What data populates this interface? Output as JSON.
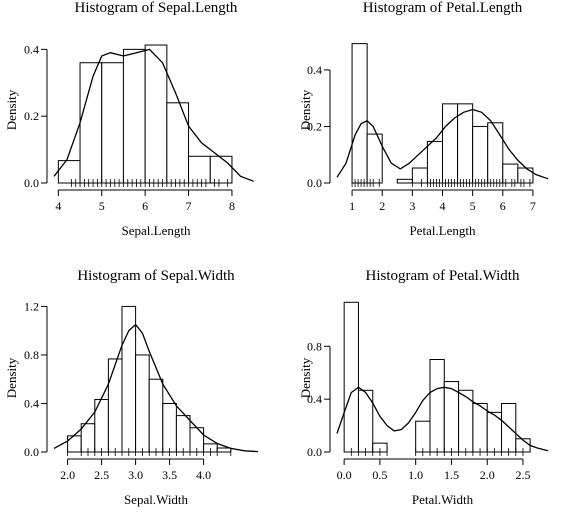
{
  "chart_data": [
    {
      "type": "bar",
      "title": "Histogram of  Sepal.Length",
      "xlabel": "Sepal.Length",
      "ylabel": "Density",
      "xlim": [
        3.9,
        8.6
      ],
      "ylim": [
        0,
        0.44
      ],
      "xticks": [
        "4",
        "5",
        "6",
        "7",
        "8"
      ],
      "xtick_values": [
        4,
        5,
        6,
        7,
        8
      ],
      "yticks": [
        "0.0",
        "0.2",
        "0.4"
      ],
      "ytick_values": [
        0,
        0.2,
        0.4
      ],
      "bins": [
        {
          "start": 4.0,
          "end": 4.5,
          "density": 0.067
        },
        {
          "start": 4.5,
          "end": 5.0,
          "density": 0.36
        },
        {
          "start": 5.0,
          "end": 5.5,
          "density": 0.36
        },
        {
          "start": 5.5,
          "end": 6.0,
          "density": 0.4
        },
        {
          "start": 6.0,
          "end": 6.5,
          "density": 0.413
        },
        {
          "start": 6.5,
          "end": 7.0,
          "density": 0.24
        },
        {
          "start": 7.0,
          "end": 7.5,
          "density": 0.08
        },
        {
          "start": 7.5,
          "end": 8.0,
          "density": 0.08
        }
      ],
      "density_curve": {
        "x": [
          3.9,
          4.2,
          4.5,
          4.8,
          5.0,
          5.2,
          5.5,
          5.8,
          6.1,
          6.4,
          6.7,
          7.0,
          7.3,
          7.6,
          7.9,
          8.2,
          8.5
        ],
        "y": [
          0.02,
          0.07,
          0.18,
          0.32,
          0.38,
          0.39,
          0.38,
          0.39,
          0.4,
          0.36,
          0.27,
          0.17,
          0.12,
          0.09,
          0.06,
          0.02,
          0.005
        ]
      },
      "rug": [
        4.3,
        4.4,
        4.5,
        4.6,
        4.7,
        4.8,
        4.9,
        5.0,
        5.1,
        5.2,
        5.3,
        5.4,
        5.5,
        5.6,
        5.7,
        5.8,
        5.9,
        6.0,
        6.1,
        6.2,
        6.3,
        6.4,
        6.5,
        6.6,
        6.7,
        6.8,
        6.9,
        7.0,
        7.1,
        7.2,
        7.3,
        7.4,
        7.6,
        7.7,
        7.9
      ],
      "grid": false,
      "legend": "none"
    },
    {
      "type": "bar",
      "title": "Histogram of  Petal.Length",
      "xlabel": "Petal.Length",
      "ylabel": "Density",
      "xlim": [
        0.5,
        7.5
      ],
      "ylim": [
        0,
        0.52
      ],
      "xticks": [
        "1",
        "2",
        "3",
        "4",
        "5",
        "6",
        "7"
      ],
      "xtick_values": [
        1,
        2,
        3,
        4,
        5,
        6,
        7
      ],
      "yticks": [
        "0.0",
        "0.2",
        "0.4"
      ],
      "ytick_values": [
        0,
        0.2,
        0.4
      ],
      "bins": [
        {
          "start": 1.0,
          "end": 1.5,
          "density": 0.493
        },
        {
          "start": 1.5,
          "end": 2.0,
          "density": 0.173
        },
        {
          "start": 2.0,
          "end": 2.5,
          "density": 0.0
        },
        {
          "start": 2.5,
          "end": 3.0,
          "density": 0.013
        },
        {
          "start": 3.0,
          "end": 3.5,
          "density": 0.053
        },
        {
          "start": 3.5,
          "end": 4.0,
          "density": 0.147
        },
        {
          "start": 4.0,
          "end": 4.5,
          "density": 0.28
        },
        {
          "start": 4.5,
          "end": 5.0,
          "density": 0.28
        },
        {
          "start": 5.0,
          "end": 5.5,
          "density": 0.2
        },
        {
          "start": 5.5,
          "end": 6.0,
          "density": 0.213
        },
        {
          "start": 6.0,
          "end": 6.5,
          "density": 0.067
        },
        {
          "start": 6.5,
          "end": 7.0,
          "density": 0.053
        }
      ],
      "density_curve": {
        "x": [
          0.5,
          0.8,
          1.1,
          1.3,
          1.5,
          1.7,
          2.0,
          2.3,
          2.6,
          2.9,
          3.2,
          3.5,
          3.8,
          4.1,
          4.4,
          4.7,
          5.0,
          5.3,
          5.6,
          5.9,
          6.2,
          6.5,
          6.8,
          7.1,
          7.5
        ],
        "y": [
          0.02,
          0.07,
          0.17,
          0.21,
          0.22,
          0.2,
          0.13,
          0.07,
          0.05,
          0.07,
          0.1,
          0.13,
          0.16,
          0.2,
          0.23,
          0.25,
          0.26,
          0.25,
          0.22,
          0.17,
          0.12,
          0.08,
          0.05,
          0.03,
          0.015
        ]
      },
      "rug": [
        1.0,
        1.1,
        1.2,
        1.3,
        1.4,
        1.5,
        1.6,
        1.7,
        1.9,
        3.0,
        3.3,
        3.5,
        3.6,
        3.7,
        3.8,
        3.9,
        4.0,
        4.1,
        4.2,
        4.3,
        4.4,
        4.5,
        4.6,
        4.7,
        4.8,
        4.9,
        5.0,
        5.1,
        5.2,
        5.3,
        5.4,
        5.5,
        5.6,
        5.7,
        5.8,
        5.9,
        6.0,
        6.1,
        6.3,
        6.4,
        6.6,
        6.7,
        6.9
      ],
      "grid": false,
      "legend": "none"
    },
    {
      "type": "bar",
      "title": "Histogram of  Sepal.Width",
      "xlabel": "Sepal.Width",
      "ylabel": "Density",
      "xlim": [
        1.8,
        4.8
      ],
      "ylim": [
        0,
        1.22
      ],
      "xticks": [
        "2.0",
        "2.5",
        "3.0",
        "3.5",
        "4.0"
      ],
      "xtick_values": [
        2.0,
        2.5,
        3.0,
        3.5,
        4.0
      ],
      "yticks": [
        "0.0",
        "0.4",
        "0.8",
        "1.2"
      ],
      "ytick_values": [
        0,
        0.4,
        0.8,
        1.2
      ],
      "bins": [
        {
          "start": 2.0,
          "end": 2.2,
          "density": 0.133
        },
        {
          "start": 2.2,
          "end": 2.4,
          "density": 0.233
        },
        {
          "start": 2.4,
          "end": 2.6,
          "density": 0.433
        },
        {
          "start": 2.6,
          "end": 2.8,
          "density": 0.767
        },
        {
          "start": 2.8,
          "end": 3.0,
          "density": 1.2
        },
        {
          "start": 3.0,
          "end": 3.2,
          "density": 0.8
        },
        {
          "start": 3.2,
          "end": 3.4,
          "density": 0.6
        },
        {
          "start": 3.4,
          "end": 3.6,
          "density": 0.4
        },
        {
          "start": 3.6,
          "end": 3.8,
          "density": 0.3
        },
        {
          "start": 3.8,
          "end": 4.0,
          "density": 0.2
        },
        {
          "start": 4.0,
          "end": 4.2,
          "density": 0.067
        },
        {
          "start": 4.2,
          "end": 4.4,
          "density": 0.033
        }
      ],
      "density_curve": {
        "x": [
          1.8,
          2.0,
          2.2,
          2.4,
          2.6,
          2.8,
          2.9,
          3.0,
          3.1,
          3.2,
          3.4,
          3.6,
          3.8,
          4.0,
          4.2,
          4.4,
          4.6,
          4.8
        ],
        "y": [
          0.03,
          0.09,
          0.19,
          0.33,
          0.56,
          0.88,
          1.0,
          1.05,
          0.98,
          0.83,
          0.56,
          0.38,
          0.26,
          0.14,
          0.07,
          0.03,
          0.01,
          0.003
        ]
      },
      "rug": [
        2.0,
        2.2,
        2.3,
        2.4,
        2.5,
        2.6,
        2.7,
        2.8,
        2.9,
        3.0,
        3.1,
        3.2,
        3.3,
        3.4,
        3.5,
        3.6,
        3.7,
        3.8,
        3.9,
        4.0,
        4.1,
        4.2,
        4.4
      ],
      "grid": false,
      "legend": "none"
    },
    {
      "type": "bar",
      "title": "Histogram of  Petal.Width",
      "xlabel": "Petal.Width",
      "ylabel": "Density",
      "xlim": [
        -0.1,
        2.85
      ],
      "ylim": [
        0,
        1.12
      ],
      "xticks": [
        "0.0",
        "0.5",
        "1.0",
        "1.5",
        "2.0",
        "2.5"
      ],
      "xtick_values": [
        0,
        0.5,
        1.0,
        1.5,
        2.0,
        2.5
      ],
      "yticks": [
        "0.0",
        "0.4",
        "0.8"
      ],
      "ytick_values": [
        0,
        0.4,
        0.8
      ],
      "bins": [
        {
          "start": 0.0,
          "end": 0.2,
          "density": 1.133
        },
        {
          "start": 0.2,
          "end": 0.4,
          "density": 0.467
        },
        {
          "start": 0.4,
          "end": 0.6,
          "density": 0.067
        },
        {
          "start": 0.6,
          "end": 0.8,
          "density": 0.0
        },
        {
          "start": 0.8,
          "end": 1.0,
          "density": 0.0
        },
        {
          "start": 1.0,
          "end": 1.2,
          "density": 0.233
        },
        {
          "start": 1.2,
          "end": 1.4,
          "density": 0.7
        },
        {
          "start": 1.4,
          "end": 1.6,
          "density": 0.533
        },
        {
          "start": 1.6,
          "end": 1.8,
          "density": 0.467
        },
        {
          "start": 1.8,
          "end": 2.0,
          "density": 0.367
        },
        {
          "start": 2.0,
          "end": 2.2,
          "density": 0.3
        },
        {
          "start": 2.2,
          "end": 2.4,
          "density": 0.367
        },
        {
          "start": 2.4,
          "end": 2.6,
          "density": 0.1
        }
      ],
      "density_curve": {
        "x": [
          -0.1,
          0.0,
          0.1,
          0.2,
          0.3,
          0.4,
          0.5,
          0.6,
          0.7,
          0.8,
          0.9,
          1.0,
          1.1,
          1.2,
          1.3,
          1.4,
          1.5,
          1.6,
          1.7,
          1.8,
          1.9,
          2.0,
          2.1,
          2.2,
          2.3,
          2.4,
          2.5,
          2.6,
          2.7,
          2.85
        ],
        "y": [
          0.14,
          0.3,
          0.45,
          0.49,
          0.45,
          0.37,
          0.27,
          0.2,
          0.16,
          0.17,
          0.22,
          0.3,
          0.39,
          0.45,
          0.48,
          0.49,
          0.48,
          0.45,
          0.42,
          0.38,
          0.35,
          0.31,
          0.28,
          0.24,
          0.19,
          0.14,
          0.09,
          0.05,
          0.03,
          0.01
        ]
      },
      "rug": [
        0.1,
        0.2,
        0.3,
        0.4,
        0.5,
        0.6,
        1.0,
        1.1,
        1.2,
        1.3,
        1.4,
        1.5,
        1.6,
        1.7,
        1.8,
        1.9,
        2.0,
        2.1,
        2.2,
        2.3,
        2.4,
        2.5
      ],
      "grid": false,
      "legend": "none"
    }
  ]
}
